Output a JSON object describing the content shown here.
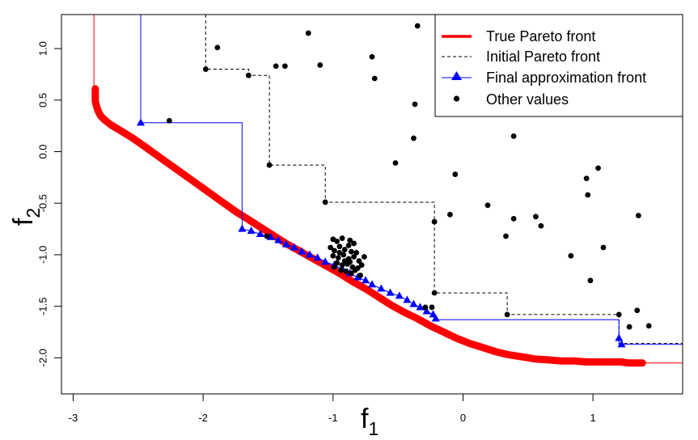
{
  "chart_data": {
    "type": "scatter",
    "title": "",
    "xlabel": {
      "main": "f",
      "sub": "1"
    },
    "ylabel": {
      "main": "f",
      "sub": "2"
    },
    "xlim": [
      -3.09,
      1.69
    ],
    "ylim": [
      -2.35,
      1.33
    ],
    "xticks": [
      -3,
      -2,
      -1,
      0,
      1
    ],
    "xtick_labels": [
      "-3",
      "-2",
      "-1",
      "0",
      "1"
    ],
    "yticks": [
      -2.0,
      -1.5,
      -1.0,
      -0.5,
      0.0,
      0.5,
      1.0
    ],
    "ytick_labels": [
      "-2.0",
      "-1.5",
      "-1.0",
      "-0.5",
      "0.0",
      "0.5",
      "1.0"
    ],
    "grid": false,
    "legend_position": "top-right",
    "legend": [
      {
        "label": "True Pareto front",
        "color": "#ff0000",
        "style": "line"
      },
      {
        "label": "Initial Pareto front",
        "color": "#000000",
        "style": "dashed"
      },
      {
        "label": "Final approximation front",
        "color": "#0000ff",
        "style": "line-triangle"
      },
      {
        "label": "Other values",
        "color": "#000000",
        "style": "dot"
      }
    ],
    "true_front": {
      "color": "#ff0000",
      "points": [
        [
          -2.83,
          0.61
        ],
        [
          -2.83,
          0.55
        ],
        [
          -2.83,
          0.49
        ],
        [
          -2.82,
          0.44
        ],
        [
          -2.81,
          0.4
        ],
        [
          -2.79,
          0.35
        ],
        [
          -2.76,
          0.31
        ],
        [
          -2.71,
          0.26
        ],
        [
          -2.63,
          0.2
        ],
        [
          -2.54,
          0.13
        ],
        [
          -2.45,
          0.05
        ],
        [
          -2.35,
          -0.04
        ],
        [
          -2.25,
          -0.13
        ],
        [
          -2.15,
          -0.22
        ],
        [
          -2.05,
          -0.31
        ],
        [
          -1.95,
          -0.4
        ],
        [
          -1.85,
          -0.49
        ],
        [
          -1.75,
          -0.58
        ],
        [
          -1.65,
          -0.66
        ],
        [
          -1.55,
          -0.74
        ],
        [
          -1.45,
          -0.82
        ],
        [
          -1.35,
          -0.9
        ],
        [
          -1.25,
          -0.97
        ],
        [
          -1.15,
          -1.04
        ],
        [
          -1.05,
          -1.11
        ],
        [
          -0.95,
          -1.18
        ],
        [
          -0.85,
          -1.26
        ],
        [
          -0.75,
          -1.33
        ],
        [
          -0.65,
          -1.41
        ],
        [
          -0.55,
          -1.49
        ],
        [
          -0.45,
          -1.56
        ],
        [
          -0.35,
          -1.62
        ],
        [
          -0.25,
          -1.69
        ],
        [
          -0.15,
          -1.75
        ],
        [
          -0.05,
          -1.81
        ],
        [
          0.05,
          -1.86
        ],
        [
          0.15,
          -1.9
        ],
        [
          0.25,
          -1.94
        ],
        [
          0.35,
          -1.97
        ],
        [
          0.45,
          -1.99
        ],
        [
          0.55,
          -2.01
        ],
        [
          0.65,
          -2.02
        ],
        [
          0.75,
          -2.03
        ],
        [
          0.85,
          -2.03
        ],
        [
          0.95,
          -2.04
        ],
        [
          1.05,
          -2.04
        ],
        [
          1.15,
          -2.04
        ],
        [
          1.22,
          -2.04
        ],
        [
          1.27,
          -2.05
        ],
        [
          1.31,
          -2.05
        ],
        [
          1.38,
          -2.05
        ]
      ],
      "tail_segments": [
        {
          "from": [
            -2.84,
            1.33
          ],
          "to": [
            -2.84,
            0.61
          ]
        },
        {
          "from": [
            1.38,
            -2.05
          ],
          "to": [
            1.69,
            -2.05
          ]
        }
      ]
    },
    "initial_front": {
      "color": "#000000",
      "points": [
        [
          -1.98,
          1.33
        ],
        [
          -1.98,
          0.8
        ],
        [
          -1.65,
          0.8
        ],
        [
          -1.65,
          0.74
        ],
        [
          -1.49,
          0.74
        ],
        [
          -1.49,
          -0.13
        ],
        [
          -1.06,
          -0.13
        ],
        [
          -1.06,
          -0.49
        ],
        [
          -0.22,
          -0.49
        ],
        [
          -0.22,
          -1.37
        ],
        [
          0.34,
          -1.37
        ],
        [
          0.34,
          -1.58
        ],
        [
          1.2,
          -1.58
        ],
        [
          1.2,
          -1.86
        ],
        [
          1.69,
          -1.86
        ]
      ]
    },
    "final_front": {
      "color": "#0000ff",
      "points": [
        [
          -2.48,
          1.33
        ],
        [
          -2.48,
          0.28
        ],
        [
          -1.7,
          0.28
        ],
        [
          -1.7,
          -0.75
        ],
        [
          -1.63,
          -0.77
        ],
        [
          -1.56,
          -0.8
        ],
        [
          -1.48,
          -0.83
        ],
        [
          -1.42,
          -0.86
        ],
        [
          -1.36,
          -0.9
        ],
        [
          -1.3,
          -0.93
        ],
        [
          -1.24,
          -0.97
        ],
        [
          -1.18,
          -1.0
        ],
        [
          -1.12,
          -1.03
        ],
        [
          -1.06,
          -1.07
        ],
        [
          -0.99,
          -1.1
        ],
        [
          -0.93,
          -1.14
        ],
        [
          -0.87,
          -1.18
        ],
        [
          -0.81,
          -1.22
        ],
        [
          -0.75,
          -1.25
        ],
        [
          -0.7,
          -1.29
        ],
        [
          -0.63,
          -1.33
        ],
        [
          -0.56,
          -1.37
        ],
        [
          -0.49,
          -1.4
        ],
        [
          -0.43,
          -1.44
        ],
        [
          -0.38,
          -1.48
        ],
        [
          -0.33,
          -1.51
        ],
        [
          -0.28,
          -1.55
        ],
        [
          -0.23,
          -1.58
        ],
        [
          -0.21,
          -1.62
        ],
        [
          -0.21,
          -1.63
        ],
        [
          1.2,
          -1.63
        ],
        [
          1.2,
          -1.81
        ],
        [
          1.2,
          -1.87
        ],
        [
          1.69,
          -1.87
        ]
      ],
      "markers": [
        [
          -2.48,
          0.28
        ],
        [
          -1.7,
          -0.75
        ],
        [
          -1.63,
          -0.77
        ],
        [
          -1.56,
          -0.8
        ],
        [
          -1.48,
          -0.83
        ],
        [
          -1.42,
          -0.86
        ],
        [
          -1.36,
          -0.9
        ],
        [
          -1.3,
          -0.93
        ],
        [
          -1.24,
          -0.97
        ],
        [
          -1.18,
          -1.0
        ],
        [
          -1.12,
          -1.03
        ],
        [
          -1.06,
          -1.07
        ],
        [
          -0.99,
          -1.1
        ],
        [
          -0.93,
          -1.14
        ],
        [
          -0.87,
          -1.18
        ],
        [
          -0.81,
          -1.22
        ],
        [
          -0.75,
          -1.25
        ],
        [
          -0.7,
          -1.29
        ],
        [
          -0.63,
          -1.33
        ],
        [
          -0.56,
          -1.37
        ],
        [
          -0.49,
          -1.4
        ],
        [
          -0.43,
          -1.44
        ],
        [
          -0.38,
          -1.48
        ],
        [
          -0.33,
          -1.51
        ],
        [
          -0.28,
          -1.55
        ],
        [
          -0.23,
          -1.58
        ],
        [
          -0.21,
          -1.62
        ],
        [
          1.2,
          -1.81
        ],
        [
          1.22,
          -1.87
        ]
      ]
    },
    "other_values": {
      "color": "#000000",
      "points": [
        [
          -1.98,
          0.8
        ],
        [
          -1.89,
          1.01
        ],
        [
          -1.65,
          0.74
        ],
        [
          -1.49,
          -0.13
        ],
        [
          -1.44,
          0.83
        ],
        [
          -1.37,
          0.83
        ],
        [
          -1.19,
          1.15
        ],
        [
          -1.1,
          0.84
        ],
        [
          -1.06,
          -0.49
        ],
        [
          -2.26,
          0.3
        ],
        [
          -0.35,
          1.22
        ],
        [
          -0.7,
          0.92
        ],
        [
          -0.68,
          0.71
        ],
        [
          -0.37,
          0.46
        ],
        [
          -0.38,
          0.13
        ],
        [
          -0.52,
          -0.11
        ],
        [
          -0.06,
          -0.22
        ],
        [
          0.39,
          0.15
        ],
        [
          0.19,
          -0.52
        ],
        [
          -0.22,
          -0.68
        ],
        [
          -0.1,
          -0.61
        ],
        [
          0.39,
          -0.65
        ],
        [
          0.33,
          -0.82
        ],
        [
          0.56,
          -0.63
        ],
        [
          0.6,
          -0.72
        ],
        [
          0.83,
          -1.01
        ],
        [
          0.95,
          -0.26
        ],
        [
          1.04,
          -0.16
        ],
        [
          0.96,
          -0.42
        ],
        [
          1.08,
          -0.93
        ],
        [
          0.98,
          -1.25
        ],
        [
          1.35,
          -0.62
        ],
        [
          -1.51,
          -0.82
        ],
        [
          -0.22,
          -1.37
        ],
        [
          0.34,
          -1.58
        ],
        [
          1.2,
          -1.58
        ],
        [
          1.34,
          -1.54
        ],
        [
          1.28,
          -1.7
        ],
        [
          1.43,
          -1.69
        ],
        [
          -0.29,
          -1.51
        ],
        [
          -0.24,
          -1.51
        ],
        [
          -1.0,
          -0.85
        ],
        [
          -0.97,
          -0.87
        ],
        [
          -0.93,
          -0.84
        ],
        [
          -0.87,
          -0.86
        ],
        [
          -0.84,
          -0.89
        ],
        [
          -1.02,
          -0.93
        ],
        [
          -0.99,
          -0.96
        ],
        [
          -0.95,
          -0.92
        ],
        [
          -0.91,
          -0.95
        ],
        [
          -0.86,
          -0.97
        ],
        [
          -0.82,
          -0.98
        ],
        [
          -1.0,
          -1.01
        ],
        [
          -0.96,
          -1.03
        ],
        [
          -0.92,
          -1.0
        ],
        [
          -0.88,
          -1.04
        ],
        [
          -0.84,
          -1.02
        ],
        [
          -0.8,
          -1.06
        ],
        [
          -0.97,
          -1.08
        ],
        [
          -0.93,
          -1.1
        ],
        [
          -0.89,
          -1.09
        ],
        [
          -0.85,
          -1.12
        ],
        [
          -0.81,
          -1.13
        ],
        [
          -0.94,
          -1.15
        ],
        [
          -0.9,
          -1.16
        ],
        [
          -0.86,
          -1.18
        ],
        [
          -0.83,
          -1.15
        ],
        [
          -0.78,
          -1.1
        ],
        [
          -0.88,
          -0.91
        ],
        [
          -0.95,
          -0.98
        ],
        [
          -0.91,
          -1.06
        ],
        [
          -0.87,
          -1.07
        ],
        [
          -0.99,
          -1.12
        ],
        [
          -0.79,
          -1.2
        ],
        [
          -0.76,
          -1.02
        ]
      ]
    }
  }
}
